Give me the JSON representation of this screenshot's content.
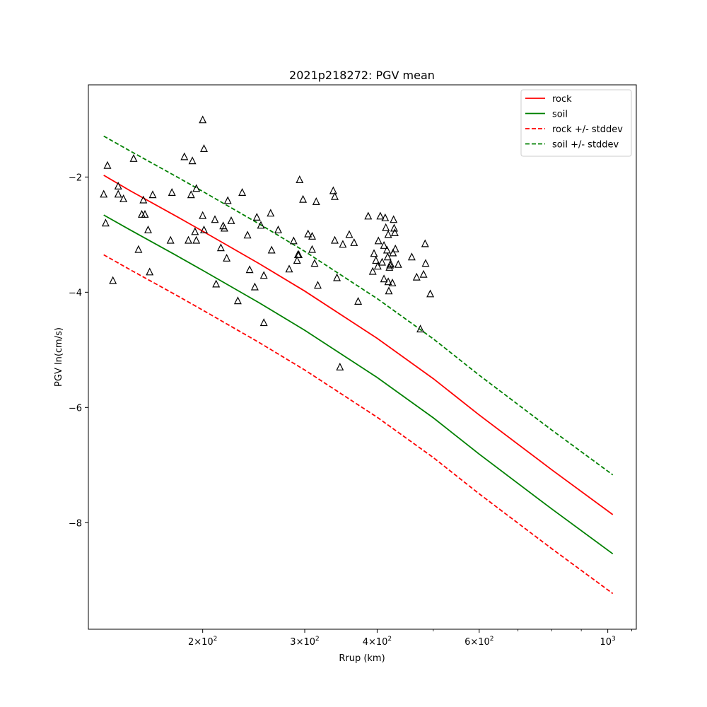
{
  "chart_data": {
    "type": "scatter",
    "title": "2021p218272: PGV mean",
    "xlabel": "Rrup (km)",
    "ylabel": "PGV ln(cm/s)",
    "xscale": "log",
    "xlim": [
      127,
      1120
    ],
    "ylim": [
      -9.85,
      -0.4
    ],
    "grid": false,
    "legend_position": "top-right",
    "x_ticks": [
      {
        "value": 200,
        "base": "2",
        "exp": "2"
      },
      {
        "value": 300,
        "base": "3",
        "exp": "2"
      },
      {
        "value": 400,
        "base": "4",
        "exp": "2"
      },
      {
        "value": 600,
        "base": "6",
        "exp": "2"
      },
      {
        "value": 1000,
        "base": "10",
        "exp": "3"
      }
    ],
    "y_ticks": [
      {
        "value": -2,
        "label": "−2"
      },
      {
        "value": -4,
        "label": "−4"
      },
      {
        "value": -6,
        "label": "−6"
      },
      {
        "value": -8,
        "label": "−8"
      }
    ],
    "series": [
      {
        "name": "rock",
        "kind": "line",
        "color": "#ff0000",
        "dash": "solid",
        "x": [
          135,
          150,
          180,
          200,
          250,
          300,
          400,
          500,
          600,
          800,
          1020
        ],
        "y": [
          -1.97,
          -2.24,
          -2.68,
          -2.94,
          -3.5,
          -3.98,
          -4.8,
          -5.5,
          -6.13,
          -7.08,
          -7.86
        ]
      },
      {
        "name": "soil",
        "kind": "line",
        "color": "#008000",
        "dash": "solid",
        "x": [
          135,
          150,
          180,
          200,
          250,
          300,
          400,
          500,
          600,
          800,
          1020
        ],
        "y": [
          -2.66,
          -2.92,
          -3.36,
          -3.62,
          -4.18,
          -4.66,
          -5.48,
          -6.18,
          -6.81,
          -7.76,
          -8.54
        ]
      },
      {
        "name": "rock +/- stddev",
        "kind": "line",
        "color": "#ff0000",
        "dash": "dashed",
        "x": [
          135,
          150,
          180,
          200,
          250,
          300,
          400,
          500,
          600,
          800,
          1020
        ],
        "y": [
          -3.35,
          -3.61,
          -4.05,
          -4.31,
          -4.87,
          -5.35,
          -6.17,
          -6.87,
          -7.5,
          -8.45,
          -9.23
        ]
      },
      {
        "name": "soil +/- stddev",
        "kind": "line",
        "color": "#008000",
        "dash": "dashed",
        "x": [
          135,
          150,
          180,
          200,
          250,
          300,
          400,
          500,
          600,
          800,
          1020
        ],
        "y": [
          -1.29,
          -1.55,
          -1.99,
          -2.25,
          -2.81,
          -3.29,
          -4.11,
          -4.81,
          -5.44,
          -6.39,
          -7.17
        ]
      },
      {
        "name": "",
        "kind": "scatter",
        "color": "#000000",
        "marker": "triangle",
        "in_legend": false,
        "x": [
          135,
          136,
          137,
          140,
          143,
          143,
          146,
          152,
          155,
          157,
          158,
          159,
          161,
          162,
          164,
          176,
          177,
          186,
          189,
          191,
          192,
          194,
          195,
          195,
          200,
          201,
          201,
          200,
          210,
          211,
          215,
          217,
          218,
          220,
          221,
          224,
          230,
          234,
          239,
          241,
          246,
          248,
          252,
          255,
          255,
          262,
          263,
          270,
          282,
          287,
          291,
          292,
          293,
          294,
          298,
          304,
          309,
          309,
          312,
          314,
          316,
          336,
          338,
          338,
          341,
          345,
          349,
          358,
          365,
          371,
          386,
          393,
          395,
          398,
          401,
          402,
          405,
          408,
          411,
          411,
          413,
          414,
          416,
          417,
          418,
          418,
          419,
          420,
          421,
          422,
          425,
          426,
          428,
          427,
          429,
          430,
          435,
          459,
          468,
          475,
          481,
          484,
          485,
          494
        ],
        "y": [
          -2.3,
          -2.8,
          -1.8,
          -3.8,
          -2.3,
          -2.16,
          -2.38,
          -1.68,
          -3.26,
          -2.65,
          -2.4,
          -2.65,
          -2.92,
          -3.65,
          -2.31,
          -3.1,
          -2.27,
          -1.65,
          -3.1,
          -2.31,
          -1.72,
          -2.95,
          -3.1,
          -2.2,
          -1.01,
          -1.51,
          -2.92,
          -2.67,
          -2.74,
          -3.86,
          -3.23,
          -2.85,
          -2.89,
          -3.41,
          -2.41,
          -2.76,
          -4.15,
          -2.27,
          -3.01,
          -3.61,
          -3.91,
          -2.7,
          -2.84,
          -3.71,
          -4.53,
          -2.63,
          -3.27,
          -2.92,
          -3.6,
          -3.11,
          -3.45,
          -3.35,
          -3.35,
          -2.05,
          -2.39,
          -2.99,
          -3.03,
          -3.26,
          -3.5,
          -2.43,
          -3.88,
          -2.24,
          -2.34,
          -3.1,
          -3.75,
          -5.3,
          -3.17,
          -3.0,
          -3.14,
          -4.16,
          -2.68,
          -3.64,
          -3.33,
          -3.45,
          -3.55,
          -3.11,
          -2.68,
          -3.48,
          -3.19,
          -3.77,
          -2.71,
          -2.88,
          -3.27,
          -3.39,
          -3.0,
          -3.82,
          -3.98,
          -3.57,
          -3.53,
          -3.51,
          -3.84,
          -3.32,
          -2.89,
          -2.74,
          -2.97,
          -3.25,
          -3.52,
          -3.39,
          -3.74,
          -4.64,
          -3.69,
          -3.16,
          -3.5,
          -4.03
        ]
      }
    ]
  }
}
